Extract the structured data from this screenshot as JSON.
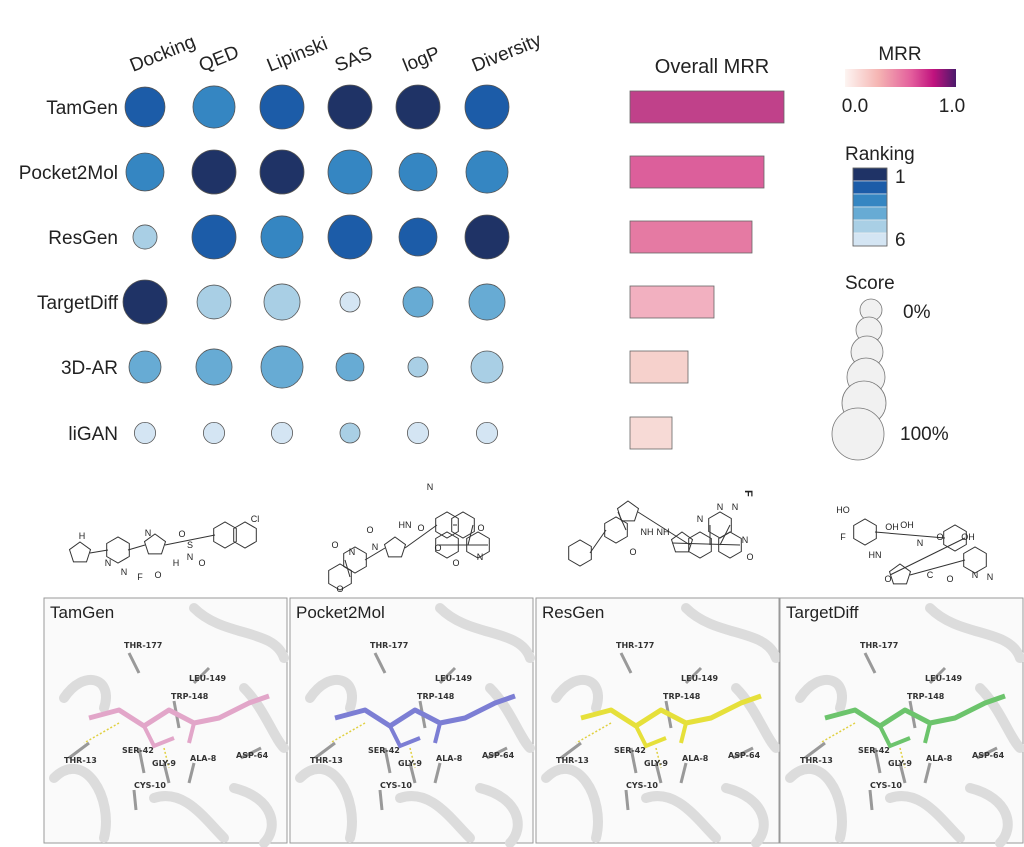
{
  "chart_data": {
    "type": "bubble-matrix",
    "models": [
      "TamGen",
      "Pocket2Mol",
      "ResGen",
      "TargetDiff",
      "3D-AR",
      "liGAN"
    ],
    "metrics": [
      "Docking",
      "QED",
      "Lipinski",
      "SAS",
      "logP",
      "Diversity"
    ],
    "ranking": [
      [
        2,
        3,
        2,
        1,
        1,
        2
      ],
      [
        3,
        1,
        1,
        3,
        3,
        3
      ],
      [
        5,
        2,
        3,
        2,
        2,
        1
      ],
      [
        1,
        5,
        5,
        6,
        4,
        4
      ],
      [
        4,
        4,
        4,
        4,
        5,
        5
      ],
      [
        6,
        6,
        6,
        5,
        6,
        6
      ]
    ],
    "score_percent": [
      [
        83,
        92,
        100,
        100,
        100,
        100
      ],
      [
        75,
        100,
        100,
        100,
        75,
        92
      ],
      [
        17,
        100,
        92,
        100,
        75,
        100
      ],
      [
        100,
        58,
        67,
        0,
        42,
        67
      ],
      [
        50,
        67,
        92,
        33,
        0,
        50
      ],
      [
        5,
        5,
        5,
        0,
        5,
        5
      ]
    ],
    "overall_mrr": {
      "title": "Overall MRR",
      "values": [
        0.77,
        0.67,
        0.61,
        0.42,
        0.29,
        0.21
      ]
    },
    "legends": {
      "mrr": {
        "title": "MRR",
        "min_label": "0.0",
        "max_label": "1.0",
        "colors": [
          "#fdf0ee",
          "#f5b8b8",
          "#e7609b",
          "#c0127e",
          "#4a1a6b"
        ]
      },
      "ranking": {
        "title": "Ranking",
        "top_label": "1",
        "bottom_label": "6",
        "colors": [
          "#1f3366",
          "#1c5ca8",
          "#3586c2",
          "#67abd4",
          "#a9cfe5",
          "#d4e5f3"
        ]
      },
      "score": {
        "title": "Score",
        "min_label": "0%",
        "max_label": "100%"
      }
    },
    "bar_colors": [
      "#c0418a",
      "#dc5f9b",
      "#e57aa3",
      "#f2b0c0",
      "#f6d1cc",
      "#f7dad6"
    ]
  },
  "stray_label": "F",
  "panels": [
    {
      "title": "TamGen",
      "ligand_color": "#e2a6c9"
    },
    {
      "title": "Pocket2Mol",
      "ligand_color": "#7c7ed4"
    },
    {
      "title": "ResGen",
      "ligand_color": "#e6e03a"
    },
    {
      "title": "TargetDiff",
      "ligand_color": "#6cc46c"
    }
  ],
  "residues": [
    "THR-177",
    "LEU-149",
    "TRP-148",
    "THR-13",
    "SER-42",
    "GLY-9",
    "ALA-8",
    "ASP-64",
    "CYS-10"
  ],
  "molecule_atoms": {
    "tamgen": [
      "H",
      "N",
      "N",
      "F",
      "N",
      "O",
      "H",
      "N",
      "S",
      "O",
      "O",
      "Cl"
    ],
    "pocket2mol": [
      "O",
      "HN",
      "O",
      "N",
      "O",
      "N",
      "O",
      "O",
      "N",
      "N",
      "O",
      "O"
    ],
    "resgen": [
      "NH",
      "O",
      "NH",
      "N",
      "N",
      "N",
      "N",
      "O"
    ],
    "targetdiff": [
      "HO",
      "F",
      "OH",
      "OH",
      "HN",
      "N",
      "O",
      "O",
      "O",
      "OH",
      "N",
      "N",
      "C"
    ]
  }
}
